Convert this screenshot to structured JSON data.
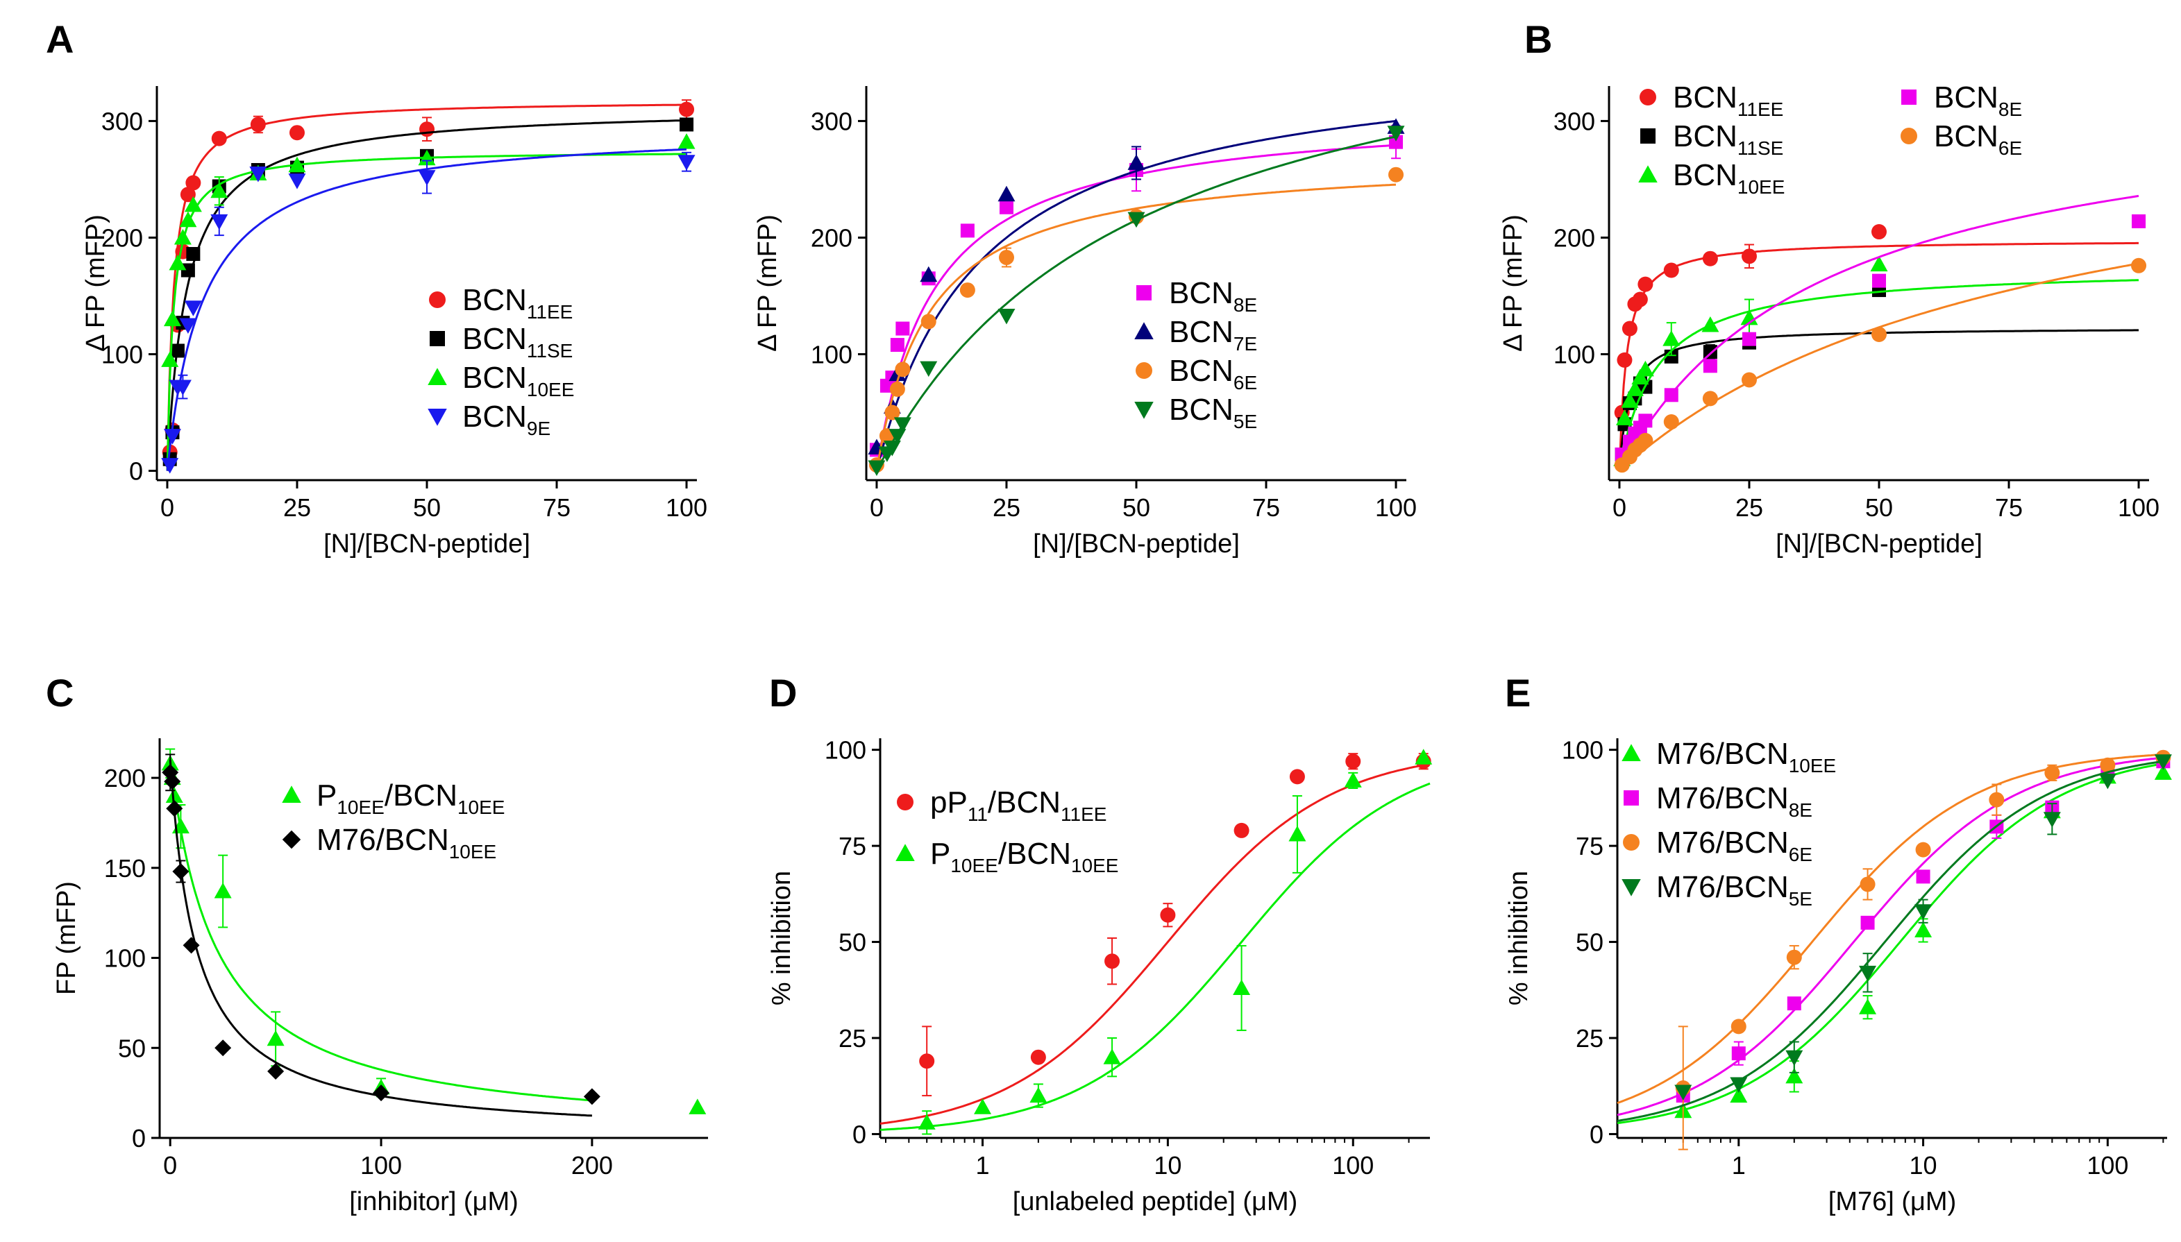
{
  "figure": {
    "panel_labels": [
      "A",
      "B",
      "C",
      "D",
      "E"
    ]
  },
  "chart_data": [
    {
      "id": "A1",
      "panel": "A",
      "type": "scatter",
      "xlabel": "[N]/[BCN-peptide]",
      "ylabel": "Δ FP (mFP)",
      "xlim": [
        -2,
        102
      ],
      "ylim": [
        -8,
        330
      ],
      "xticks": [
        0,
        25,
        50,
        75,
        100
      ],
      "yticks": [
        0,
        100,
        200,
        300
      ],
      "xscale": "linear",
      "legend_position": "center-right",
      "series": [
        {
          "name": "BCN",
          "sub": "11EE",
          "color": "#ee1c1c",
          "marker": "circle",
          "fit": {
            "model": "hyperbola",
            "bmax": 318,
            "kd": 1.3
          },
          "x": [
            0.5,
            1,
            2,
            3,
            4,
            5,
            10,
            17.5,
            25,
            50,
            100
          ],
          "y": [
            16,
            35,
            125,
            188,
            237,
            247,
            285,
            297,
            290,
            293,
            310
          ],
          "err": [
            0,
            0,
            0,
            0,
            0,
            0,
            0,
            7,
            0,
            10,
            8
          ]
        },
        {
          "name": "BCN",
          "sub": "11SE",
          "color": "#000000",
          "marker": "square",
          "fit": {
            "model": "hyperbola",
            "bmax": 312,
            "kd": 3.8
          },
          "x": [
            0.5,
            1,
            2,
            3,
            4,
            5,
            10,
            17.5,
            25,
            50,
            100
          ],
          "y": [
            10,
            33,
            103,
            127,
            172,
            186,
            244,
            258,
            260,
            270,
            297
          ],
          "err": [
            0,
            0,
            0,
            0,
            0,
            0,
            5,
            0,
            0,
            0,
            0
          ]
        },
        {
          "name": "BCN",
          "sub": "10EE",
          "color": "#00ee00",
          "marker": "triangle-up",
          "fit": {
            "model": "hyperbola",
            "bmax": 275,
            "kd": 1.2
          },
          "x": [
            0.5,
            1,
            2,
            3,
            4,
            5,
            10,
            17.5,
            25,
            50,
            100
          ],
          "y": [
            95,
            130,
            178,
            200,
            215,
            228,
            240,
            255,
            262,
            268,
            282
          ],
          "err": [
            0,
            0,
            0,
            0,
            0,
            0,
            12,
            0,
            0,
            0,
            0
          ]
        },
        {
          "name": "BCN",
          "sub": "9E",
          "color": "#1a1aee",
          "marker": "triangle-down",
          "fit": {
            "model": "hyperbola",
            "bmax": 295,
            "kd": 7.0
          },
          "x": [
            0.5,
            1,
            2,
            3,
            4,
            5,
            10,
            17.5,
            25,
            50,
            100
          ],
          "y": [
            5,
            30,
            72,
            72,
            125,
            140,
            214,
            255,
            249,
            252,
            265
          ],
          "err": [
            0,
            0,
            0,
            10,
            0,
            0,
            12,
            0,
            0,
            14,
            8
          ]
        }
      ]
    },
    {
      "id": "A2",
      "panel": "A",
      "type": "scatter",
      "xlabel": "[N]/[BCN-peptide]",
      "ylabel": "Δ FP (mFP)",
      "xlim": [
        -2,
        102
      ],
      "ylim": [
        -8,
        330
      ],
      "xticks": [
        0,
        25,
        50,
        75,
        100
      ],
      "yticks": [
        100,
        200,
        300
      ],
      "xscale": "linear",
      "legend_position": "center-right",
      "series": [
        {
          "name": "BCN",
          "sub": "8E",
          "color": "#ee00ee",
          "marker": "square",
          "fit": {
            "model": "hyperbola",
            "bmax": 310,
            "kd": 11
          },
          "x": [
            0,
            2,
            3,
            4,
            5,
            10,
            17.5,
            25,
            50,
            100
          ],
          "y": [
            18,
            73,
            80,
            108,
            122,
            165,
            206,
            226,
            258,
            282
          ],
          "err": [
            0,
            0,
            0,
            0,
            0,
            0,
            0,
            0,
            18,
            14
          ]
        },
        {
          "name": "BCN",
          "sub": "7E",
          "color": "#00007a",
          "marker": "triangle-up",
          "fit": {
            "model": "hyperbola",
            "bmax": 360,
            "kd": 20
          },
          "x": [
            0,
            3,
            4,
            10,
            25,
            50,
            100
          ],
          "y": [
            20,
            55,
            83,
            168,
            237,
            264,
            295
          ],
          "err": [
            0,
            0,
            0,
            0,
            0,
            14,
            0
          ]
        },
        {
          "name": "BCN",
          "sub": "6E",
          "color": "#f58220",
          "marker": "circle",
          "fit": {
            "model": "hyperbola",
            "bmax": 270,
            "kd": 10
          },
          "x": [
            0,
            2,
            3,
            4,
            5,
            10,
            17.5,
            25,
            50,
            100
          ],
          "y": [
            5,
            30,
            50,
            70,
            87,
            128,
            155,
            183,
            218,
            254
          ],
          "err": [
            0,
            0,
            0,
            0,
            0,
            0,
            0,
            8,
            0,
            0
          ]
        },
        {
          "name": "BCN",
          "sub": "5E",
          "color": "#007a1e",
          "marker": "triangle-down",
          "fit": {
            "model": "hyperbola",
            "bmax": 430,
            "kd": 50
          },
          "x": [
            0,
            2,
            3,
            4,
            5,
            10,
            25,
            50,
            100
          ],
          "y": [
            3,
            15,
            20,
            30,
            40,
            88,
            133,
            216,
            290
          ],
          "err": [
            0,
            0,
            0,
            0,
            0,
            0,
            0,
            0,
            0
          ]
        }
      ]
    },
    {
      "id": "B",
      "panel": "B",
      "type": "scatter",
      "xlabel": "[N]/[BCN-peptide]",
      "ylabel": "Δ FP (mFP)",
      "xlim": [
        -2,
        102
      ],
      "ylim": [
        -8,
        330
      ],
      "xticks": [
        0,
        25,
        50,
        75,
        100
      ],
      "yticks": [
        100,
        200,
        300
      ],
      "xscale": "linear",
      "legend_position": "top",
      "series": [
        {
          "name": "BCN",
          "sub": "11EE",
          "color": "#ee1c1c",
          "marker": "circle",
          "fit": {
            "model": "hyperbola",
            "bmax": 198,
            "kd": 1.4
          },
          "x": [
            0.5,
            1,
            2,
            3,
            4,
            5,
            10,
            17.5,
            25,
            50
          ],
          "y": [
            50,
            95,
            122,
            143,
            147,
            160,
            172,
            182,
            184,
            205
          ],
          "err": [
            0,
            0,
            0,
            0,
            0,
            0,
            0,
            0,
            10,
            0
          ]
        },
        {
          "name": "BCN",
          "sub": "11SE",
          "color": "#000000",
          "marker": "square",
          "fit": {
            "model": "hyperbola",
            "bmax": 123,
            "kd": 2.0
          },
          "x": [
            0.5,
            1,
            2,
            3,
            4,
            5,
            10,
            17.5,
            25,
            50
          ],
          "y": [
            14,
            40,
            58,
            62,
            75,
            72,
            98,
            102,
            110,
            155
          ],
          "err": [
            0,
            0,
            0,
            0,
            0,
            0,
            0,
            6,
            0,
            0
          ]
        },
        {
          "name": "BCN",
          "sub": "10EE",
          "color": "#00ee00",
          "marker": "triangle-up",
          "fit": {
            "model": "hyperbola",
            "bmax": 175,
            "kd": 7.0
          },
          "x": [
            0.5,
            1,
            2,
            3,
            4,
            5,
            10,
            17.5,
            25,
            50
          ],
          "y": [
            10,
            45,
            60,
            70,
            80,
            87,
            113,
            125,
            131,
            177
          ],
          "err": [
            0,
            0,
            0,
            0,
            0,
            0,
            14,
            0,
            16,
            0
          ]
        },
        {
          "name": "BCN",
          "sub": "8E",
          "color": "#ee00ee",
          "marker": "square",
          "fit": {
            "model": "hill",
            "bmax": 330,
            "kd": 40,
            "n": 1
          },
          "x": [
            0.5,
            2,
            3,
            4,
            5,
            10,
            17.5,
            25,
            50,
            100
          ],
          "y": [
            14,
            25,
            32,
            37,
            43,
            65,
            90,
            113,
            163,
            214
          ],
          "err": [
            0,
            0,
            0,
            0,
            0,
            0,
            0,
            0,
            0,
            0
          ]
        },
        {
          "name": "BCN",
          "sub": "6E",
          "color": "#f58220",
          "marker": "circle",
          "fit": {
            "model": "hill",
            "bmax": 320,
            "kd": 80,
            "n": 1
          },
          "x": [
            0.5,
            2,
            3,
            4,
            5,
            10,
            17.5,
            25,
            50,
            100
          ],
          "y": [
            5,
            12,
            18,
            22,
            26,
            42,
            62,
            78,
            117,
            176
          ],
          "err": [
            0,
            0,
            0,
            0,
            0,
            0,
            0,
            0,
            0,
            0
          ]
        }
      ]
    },
    {
      "id": "C",
      "panel": "C",
      "type": "scatter",
      "xlabel": "[inhibitor] (μM)",
      "ylabel": "FP (mFP)",
      "xlim": [
        -5,
        255
      ],
      "ylim": [
        0,
        222
      ],
      "xticks": [
        0,
        100,
        200
      ],
      "yticks": [
        0,
        50,
        100,
        150,
        200
      ],
      "xscale": "linear",
      "legend_position": "top-right",
      "series": [
        {
          "name": "P",
          "sub": "10EE",
          "suffix": "/BCN",
          "suffix_sub": "10EE",
          "color": "#00ee00",
          "marker": "triangle-up",
          "fit": {
            "model": "decay",
            "top": 210,
            "bottom": 0,
            "ic50": 22
          },
          "x": [
            0,
            1,
            2,
            5,
            25,
            50,
            100,
            250
          ],
          "y": [
            208,
            200,
            190,
            173,
            137,
            55,
            28,
            17
          ],
          "err": [
            8,
            0,
            0,
            12,
            20,
            15,
            5,
            0
          ]
        },
        {
          "name": "M76",
          "sub": "",
          "suffix": "/BCN",
          "suffix_sub": "10EE",
          "color": "#000000",
          "marker": "diamond",
          "fit": {
            "model": "decay",
            "top": 210,
            "bottom": 0,
            "ic50": 12.5
          },
          "x": [
            0,
            1,
            2,
            5,
            10,
            25,
            50,
            100,
            200
          ],
          "y": [
            203,
            198,
            183,
            148,
            107,
            50,
            37,
            25,
            23
          ],
          "err": [
            10,
            0,
            0,
            6,
            0,
            0,
            0,
            0,
            0
          ]
        }
      ]
    },
    {
      "id": "D",
      "panel": "D",
      "type": "scatter",
      "xlabel": "[unlabeled peptide] (μM)",
      "ylabel": "% inhibition",
      "xlim": [
        0.28,
        260
      ],
      "ylim": [
        -1,
        103
      ],
      "xticks": [
        1,
        10,
        100
      ],
      "yticks": [
        0,
        25,
        50,
        75,
        100
      ],
      "xscale": "log",
      "legend_position": "top-left",
      "series": [
        {
          "name": "pP",
          "sub": "11",
          "suffix": "/BCN",
          "suffix_sub": "11EE",
          "color": "#ee1c1c",
          "marker": "circle",
          "fit": {
            "model": "logistic",
            "ic50": 10,
            "h": 1
          },
          "x": [
            0.5,
            2,
            5,
            10,
            25,
            50,
            100,
            240
          ],
          "y": [
            19,
            20,
            45,
            57,
            79,
            93,
            97,
            97
          ],
          "err": [
            9,
            0,
            6,
            3,
            0,
            0,
            2,
            2
          ]
        },
        {
          "name": "P",
          "sub": "10EE",
          "suffix": "/BCN",
          "suffix_sub": "10EE",
          "color": "#00ee00",
          "marker": "triangle-up",
          "fit": {
            "model": "logistic",
            "ic50": 25,
            "h": 1
          },
          "x": [
            0.5,
            1,
            2,
            5,
            25,
            50,
            100,
            240
          ],
          "y": [
            3,
            7,
            10,
            20,
            38,
            78,
            92,
            98
          ],
          "err": [
            3,
            0,
            3,
            5,
            11,
            10,
            2,
            0
          ]
        }
      ]
    },
    {
      "id": "E",
      "panel": "E",
      "type": "scatter",
      "xlabel": "[M76] (μM)",
      "ylabel": "% inhibition",
      "xlim": [
        0.22,
        210
      ],
      "ylim": [
        -1,
        103
      ],
      "xticks": [
        1,
        10,
        100
      ],
      "yticks": [
        0,
        25,
        50,
        75,
        100
      ],
      "xscale": "log",
      "legend_position": "top-left",
      "series": [
        {
          "name": "M76/BCN",
          "sub": "10EE",
          "color": "#00ee00",
          "marker": "triangle-up",
          "fit": {
            "model": "logistic",
            "ic50": 7.5,
            "h": 1
          },
          "x": [
            0.5,
            1,
            2,
            5,
            10,
            50,
            100,
            200
          ],
          "y": [
            6,
            10,
            15,
            33,
            53,
            84,
            93,
            94
          ],
          "err": [
            0,
            0,
            4,
            3,
            3,
            0,
            0,
            0
          ]
        },
        {
          "name": "M76/BCN",
          "sub": "8E",
          "color": "#ee00ee",
          "marker": "square",
          "fit": {
            "model": "logistic",
            "ic50": 4.2,
            "h": 1
          },
          "x": [
            0.5,
            1,
            2,
            5,
            10,
            25,
            50,
            100,
            200
          ],
          "y": [
            10,
            21,
            34,
            55,
            67,
            80,
            85,
            95,
            97
          ],
          "err": [
            0,
            3,
            0,
            0,
            0,
            3,
            0,
            0,
            0
          ]
        },
        {
          "name": "M76/BCN",
          "sub": "6E",
          "color": "#f58220",
          "marker": "circle",
          "fit": {
            "model": "logistic",
            "ic50": 2.5,
            "h": 1
          },
          "x": [
            0.5,
            1,
            2,
            5,
            10,
            25,
            50,
            100,
            200
          ],
          "y": [
            12,
            28,
            46,
            65,
            74,
            87,
            94,
            96,
            98
          ],
          "err": [
            16,
            0,
            3,
            4,
            0,
            4,
            2,
            0,
            0
          ]
        },
        {
          "name": "M76/BCN",
          "sub": "5E",
          "color": "#007a1e",
          "marker": "triangle-down",
          "fit": {
            "model": "logistic",
            "ic50": 6.2,
            "h": 1
          },
          "x": [
            0.5,
            1,
            2,
            5,
            10,
            50,
            100,
            200
          ],
          "y": [
            11,
            13,
            20,
            42,
            58,
            82,
            92,
            97
          ],
          "err": [
            0,
            0,
            4,
            5,
            3,
            4,
            0,
            0
          ]
        }
      ]
    }
  ]
}
